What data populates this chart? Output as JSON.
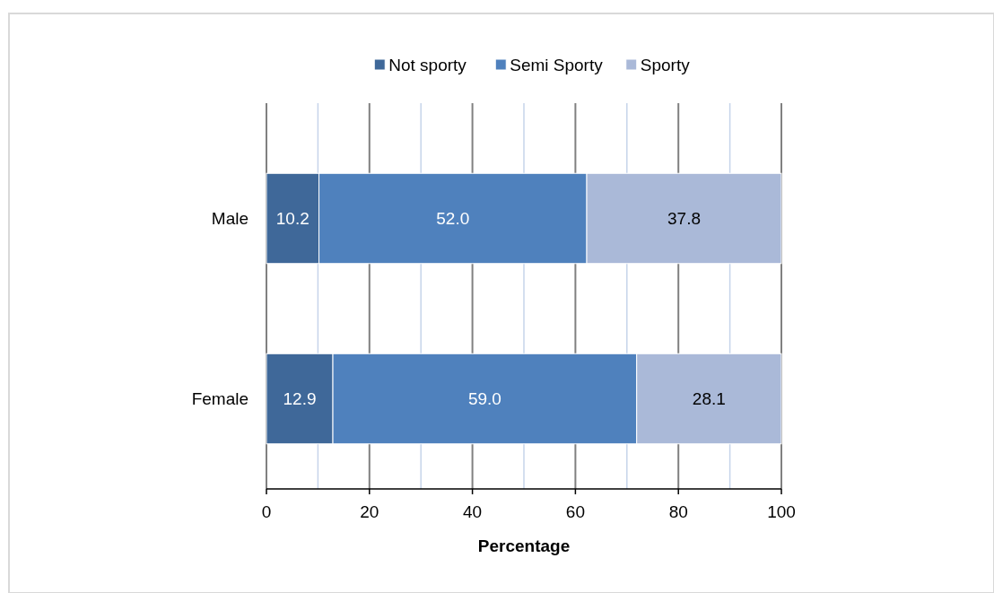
{
  "chart_data": {
    "type": "bar",
    "orientation": "horizontal",
    "stacked": true,
    "categories": [
      "Male",
      "Female"
    ],
    "series": [
      {
        "name": "Not sporty",
        "color": "#3f6899",
        "values": [
          10.2,
          12.9
        ]
      },
      {
        "name": "Semi Sporty",
        "color": "#4f81bd",
        "values": [
          52.0,
          59.0
        ]
      },
      {
        "name": "Sporty",
        "color": "#aab9d8",
        "values": [
          37.8,
          28.1
        ]
      }
    ],
    "value_labels": [
      [
        "10.2",
        "12.9"
      ],
      [
        "52.0",
        "59.0"
      ],
      [
        "37.8",
        "28.1"
      ]
    ],
    "xlabel": "Percentage",
    "xlim": [
      0,
      100
    ],
    "xticks": [
      0,
      {
        "value": 10,
        "label": null
      },
      20,
      {
        "value": 30,
        "label": null
      },
      40,
      {
        "value": 50,
        "label": null
      },
      60,
      {
        "value": 70,
        "label": null
      },
      80,
      {
        "value": 90,
        "label": null
      },
      100
    ],
    "grid": "x",
    "legend": "top"
  }
}
